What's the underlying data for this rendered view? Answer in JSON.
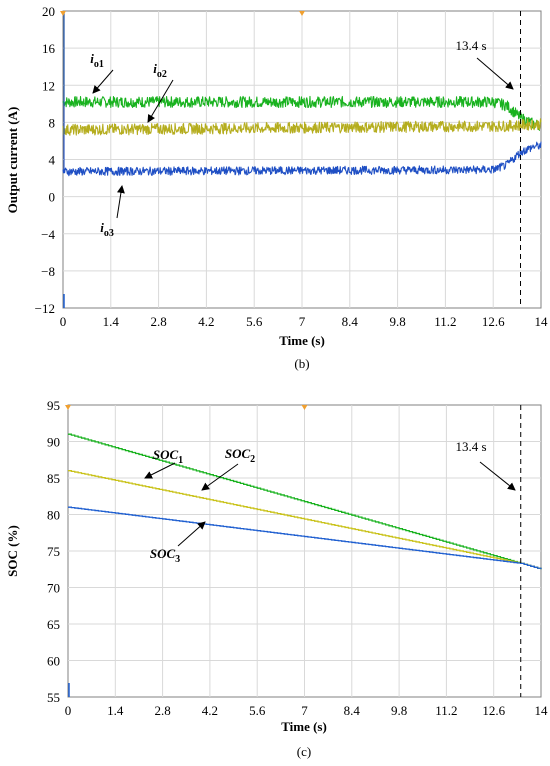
{
  "chart_data": [
    {
      "type": "line",
      "panel_label": "(b)",
      "xlabel": "Time (s)",
      "ylabel": "Output current (A)",
      "xlim": [
        0,
        14
      ],
      "ylim": [
        -12,
        20
      ],
      "x_ticks": [
        "0",
        "1.4",
        "2.8",
        "4.2",
        "5.6",
        "7",
        "8.4",
        "9.8",
        "11.2",
        "12.6",
        "14"
      ],
      "y_ticks": [
        "20",
        "16",
        "12",
        "8",
        "4",
        "0",
        "−4",
        "−8",
        "−12"
      ],
      "grid": true,
      "annotation": "13.4 s",
      "annotation_x": 13.4,
      "series": [
        {
          "name": "io1",
          "label_main": "i",
          "label_sub": "o1",
          "color": "#19b21f",
          "x": [
            0,
            0.05,
            12.6,
            13.0,
            13.4,
            13.8,
            14
          ],
          "y": [
            10.2,
            10.2,
            10.2,
            9.8,
            8.5,
            7.8,
            7.7
          ],
          "noise": 0.6
        },
        {
          "name": "io2",
          "label_main": "i",
          "label_sub": "o2",
          "color": "#b5ad1e",
          "x": [
            0,
            0.05,
            12.6,
            13.0,
            13.4,
            13.8,
            14
          ],
          "y": [
            7.2,
            7.2,
            7.6,
            7.6,
            7.7,
            7.8,
            7.8
          ],
          "noise": 0.6
        },
        {
          "name": "io3",
          "label_main": "i",
          "label_sub": "o3",
          "color": "#1f4fc4",
          "x": [
            0,
            0.05,
            12.6,
            13.0,
            13.4,
            13.8,
            14
          ],
          "y": [
            2.7,
            2.7,
            2.9,
            3.4,
            4.8,
            5.4,
            5.5
          ],
          "noise": 0.45
        }
      ]
    },
    {
      "type": "line",
      "panel_label": "(c)",
      "xlabel": "Time (s)",
      "ylabel": "SOC (%)",
      "xlim": [
        0,
        14
      ],
      "ylim": [
        55,
        95
      ],
      "x_ticks": [
        "0",
        "1.4",
        "2.8",
        "4.2",
        "5.6",
        "7",
        "8.4",
        "9.8",
        "11.2",
        "12.6",
        "14"
      ],
      "y_ticks": [
        "95",
        "90",
        "85",
        "80",
        "75",
        "70",
        "65",
        "60",
        "55"
      ],
      "grid": true,
      "annotation": "13.4 s",
      "annotation_x": 13.4,
      "series": [
        {
          "name": "SOC1",
          "label_main": "SOC",
          "label_sub": "1",
          "color": "#19b21f",
          "x": [
            0,
            13.4,
            14
          ],
          "y": [
            91.0,
            73.3,
            72.5
          ]
        },
        {
          "name": "SOC2",
          "label_main": "SOC",
          "label_sub": "2",
          "color": "#c9c21a",
          "x": [
            0,
            13.4,
            14
          ],
          "y": [
            86.0,
            73.3,
            72.5
          ]
        },
        {
          "name": "SOC3",
          "label_main": "SOC",
          "label_sub": "3",
          "color": "#1f5fd0",
          "x": [
            0,
            13.4,
            14
          ],
          "y": [
            81.0,
            73.3,
            72.5
          ]
        }
      ]
    }
  ]
}
